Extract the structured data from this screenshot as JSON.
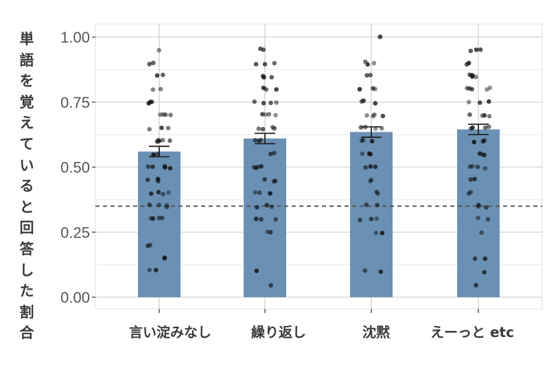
{
  "chart_data": {
    "type": "bar",
    "title": "",
    "xlabel": "",
    "ylabel": "単語を覚えていると回答した割合",
    "ylim": [
      0,
      1
    ],
    "yticks": [
      "0.00",
      "0.25",
      "0.50",
      "0.75",
      "1.00"
    ],
    "categories": [
      "言い淀みなし",
      "繰り返し",
      "沈黙",
      "えーっと etc"
    ],
    "values": [
      0.56,
      0.61,
      0.635,
      0.645
    ],
    "error_bars": [
      {
        "low": 0.54,
        "high": 0.58
      },
      {
        "low": 0.59,
        "high": 0.63
      },
      {
        "low": 0.615,
        "high": 0.655
      },
      {
        "low": 0.625,
        "high": 0.665
      }
    ],
    "reference_line": {
      "y": 0.35,
      "style": "dashed"
    },
    "grid": true,
    "legend": null,
    "jittered_points": [
      [
        0.95,
        0.9,
        0.9,
        0.85,
        0.85,
        0.8,
        0.8,
        0.75,
        0.75,
        0.75,
        0.7,
        0.7,
        0.7,
        0.7,
        0.65,
        0.65,
        0.65,
        0.6,
        0.6,
        0.6,
        0.6,
        0.6,
        0.55,
        0.55,
        0.55,
        0.5,
        0.5,
        0.5,
        0.5,
        0.5,
        0.45,
        0.45,
        0.45,
        0.4,
        0.4,
        0.4,
        0.4,
        0.35,
        0.35,
        0.35,
        0.35,
        0.3,
        0.3,
        0.3,
        0.3,
        0.2,
        0.2,
        0.15,
        0.15,
        0.1,
        0.1
      ],
      [
        0.95,
        0.95,
        0.9,
        0.9,
        0.9,
        0.85,
        0.85,
        0.85,
        0.8,
        0.8,
        0.8,
        0.75,
        0.75,
        0.75,
        0.75,
        0.7,
        0.7,
        0.7,
        0.7,
        0.65,
        0.65,
        0.65,
        0.65,
        0.6,
        0.6,
        0.6,
        0.55,
        0.55,
        0.5,
        0.5,
        0.5,
        0.5,
        0.45,
        0.45,
        0.45,
        0.4,
        0.4,
        0.4,
        0.35,
        0.35,
        0.35,
        0.3,
        0.3,
        0.3,
        0.25,
        0.25,
        0.1,
        0.05
      ],
      [
        1.0,
        1.0,
        0.9,
        0.9,
        0.9,
        0.85,
        0.85,
        0.8,
        0.8,
        0.8,
        0.8,
        0.75,
        0.75,
        0.75,
        0.7,
        0.7,
        0.7,
        0.7,
        0.65,
        0.65,
        0.65,
        0.65,
        0.6,
        0.6,
        0.6,
        0.55,
        0.55,
        0.55,
        0.5,
        0.5,
        0.5,
        0.45,
        0.45,
        0.4,
        0.4,
        0.35,
        0.35,
        0.3,
        0.3,
        0.3,
        0.25,
        0.25,
        0.1,
        0.1
      ],
      [
        0.95,
        0.95,
        0.95,
        0.9,
        0.9,
        0.9,
        0.85,
        0.85,
        0.85,
        0.85,
        0.8,
        0.8,
        0.8,
        0.8,
        0.8,
        0.75,
        0.75,
        0.75,
        0.7,
        0.7,
        0.7,
        0.7,
        0.65,
        0.65,
        0.65,
        0.65,
        0.6,
        0.6,
        0.6,
        0.55,
        0.55,
        0.55,
        0.5,
        0.5,
        0.5,
        0.5,
        0.45,
        0.45,
        0.4,
        0.4,
        0.35,
        0.35,
        0.35,
        0.3,
        0.3,
        0.25,
        0.15,
        0.15,
        0.1,
        0.05
      ]
    ]
  },
  "colors": {
    "bar": "#6a91b4",
    "points": "#111111",
    "grid_major": "#d9d9d9",
    "grid_minor": "#ececec",
    "reference_line": "#555555",
    "tick_text": "#555555"
  }
}
